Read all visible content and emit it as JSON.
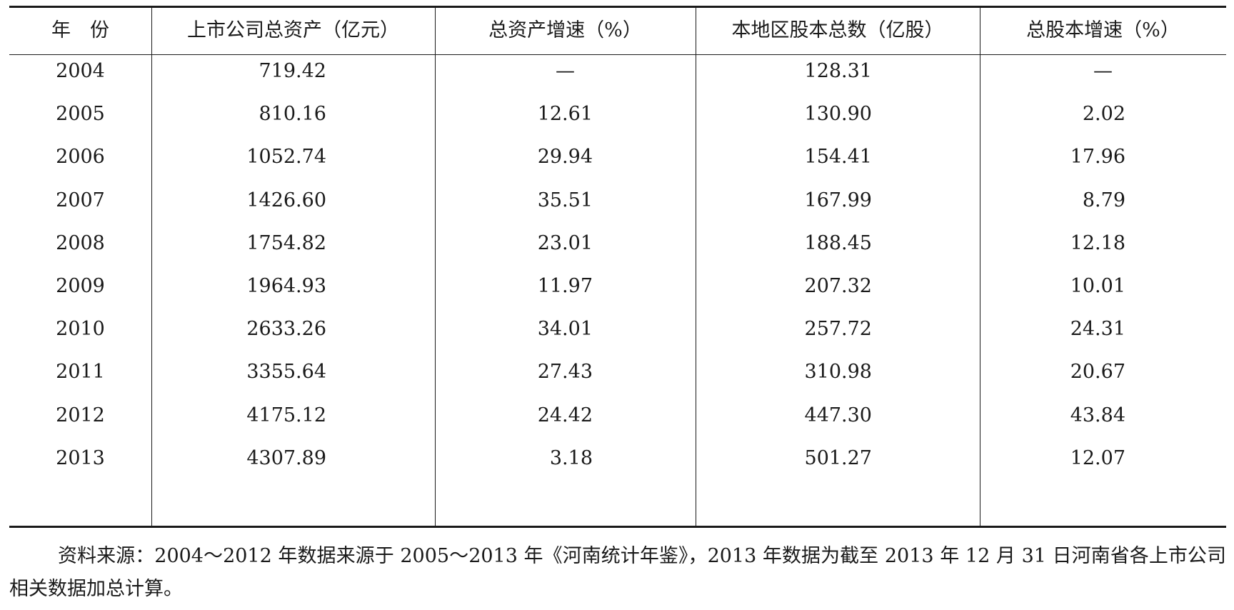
{
  "table": {
    "header": [
      "年　份",
      "上市公司总资产（亿元）",
      "总资产增速（%）",
      "本地区股本总数（亿股）",
      "总股本增速（%）"
    ],
    "rows": [
      [
        "2004",
        "719.42",
        "—",
        "128.31",
        "—"
      ],
      [
        "2005",
        "810.16",
        "12.61",
        "130.90",
        "2.02"
      ],
      [
        "2006",
        "1052.74",
        "29.94",
        "154.41",
        "17.96"
      ],
      [
        "2007",
        "1426.60",
        "35.51",
        "167.99",
        "8.79"
      ],
      [
        "2008",
        "1754.82",
        "23.01",
        "188.45",
        "12.18"
      ],
      [
        "2009",
        "1964.93",
        "11.97",
        "207.32",
        "10.01"
      ],
      [
        "2010",
        "2633.26",
        "34.01",
        "257.72",
        "24.31"
      ],
      [
        "2011",
        "3355.64",
        "27.43",
        "310.98",
        "20.67"
      ],
      [
        "2012",
        "4175.12",
        "24.42",
        "447.30",
        "43.84"
      ],
      [
        "2013",
        "4307.89",
        "3.18",
        "501.27",
        "12.07"
      ]
    ]
  },
  "note": "资料来源：2004～2012 年数据来源于 2005～2013 年《河南统计年鉴》，2013 年数据为截至 2013 年 12 月 31 日河南省各上市公司相关数据加总计算。"
}
